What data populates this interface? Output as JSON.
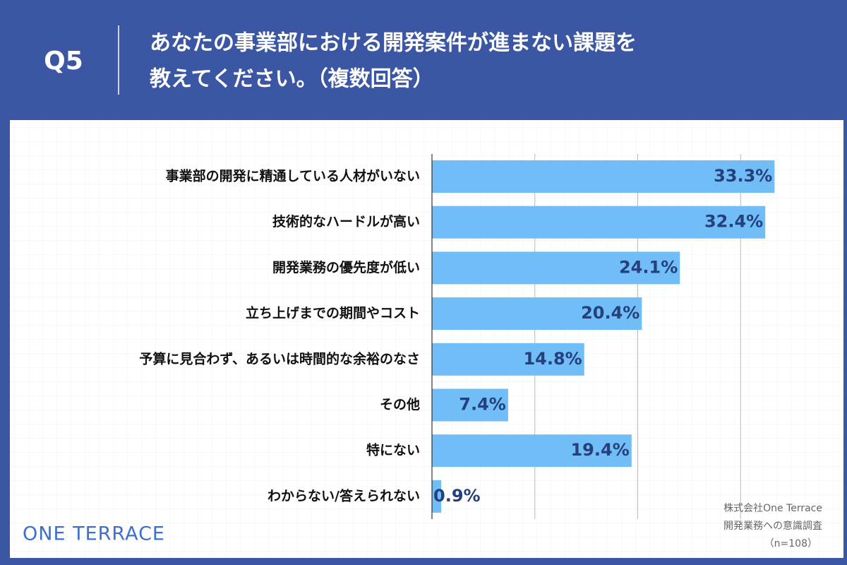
{
  "header": {
    "question": "Q5",
    "title": [
      "あなたの事業部における開発案件が進まない課題を",
      "教えてください。（複数回答）"
    ]
  },
  "chart_data": {
    "type": "bar",
    "orientation": "horizontal",
    "categories": [
      "事業部の開発に精通している人材がいない",
      "技術的なハードルが高い",
      "開発業務の優先度が低い",
      "立ち上げまでの期間やコスト",
      "予算に見合わず、あるいは時間的な余裕のなさ",
      "その他",
      "特にない",
      "わからない/答えられない"
    ],
    "values": [
      33.3,
      32.4,
      24.1,
      20.4,
      14.8,
      7.4,
      19.4,
      0.9
    ],
    "value_labels": [
      "33.3%",
      "32.4%",
      "24.1%",
      "20.4%",
      "14.8%",
      "7.4%",
      "19.4%",
      "0.9%"
    ],
    "color": "#70bdf8",
    "xlim": [
      0,
      40
    ],
    "xticks": [
      0,
      10,
      20,
      30,
      40
    ],
    "grid": true
  },
  "footer": {
    "logo": "ONE TERRACE",
    "source": [
      "株式会社One Terrace",
      "開発業務への意識調査",
      "（n=108）"
    ]
  }
}
